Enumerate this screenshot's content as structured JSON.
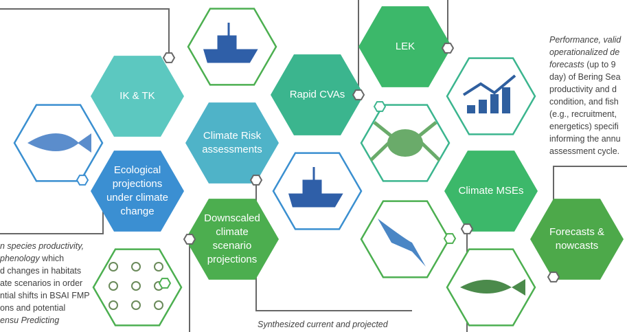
{
  "nodes": [
    {
      "lines": [
        "IK & TK"
      ]
    },
    {
      "lines": [
        "Climate Risk",
        "assessments"
      ]
    },
    {
      "lines": [
        "Ecological",
        "projections",
        "under climate",
        "change"
      ]
    },
    {
      "lines": [
        "Downscaled",
        "climate",
        "scenario",
        "projections"
      ]
    },
    {
      "lines": [
        "Rapid CVAs"
      ]
    },
    {
      "lines": [
        "LEK"
      ]
    },
    {
      "lines": [
        "Climate MSEs"
      ]
    },
    {
      "lines": [
        "Forecasts &",
        "nowcasts"
      ]
    }
  ],
  "right_note": {
    "italic": [
      "Performance, valid",
      "operationalized de",
      "forecasts"
    ],
    "plain": [
      " (up to 9",
      "day) of Bering Sea",
      "productivity and d",
      "condition, and fish",
      "(e.g., recruitment,",
      "energetics) specifi",
      "informing the annu",
      "assessment cycle."
    ]
  },
  "left_note": {
    "italic": [
      "n species productivity,",
      "phenology",
      "ensu Predicting"
    ],
    "plain": [
      " which",
      "d changes in habitats",
      "ate scenarios in order",
      "ntial shifts in BSAI FMP",
      "ons and potential"
    ]
  },
  "bottom_note": "Synthesized current and projected"
}
